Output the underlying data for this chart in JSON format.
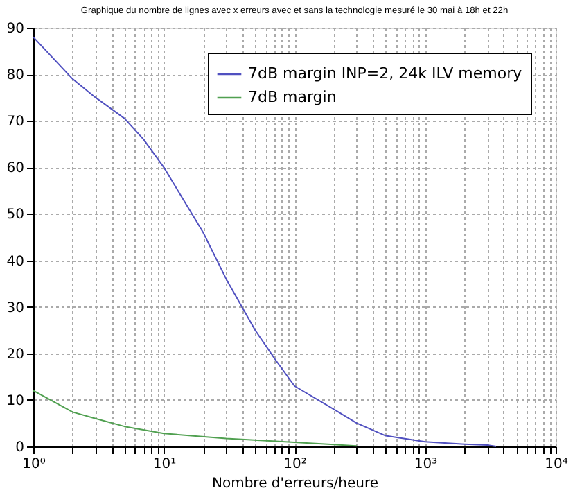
{
  "chart_data": {
    "type": "line",
    "title": "Graphique du nombre de lignes avec x erreurs avec et sans la technologie mesuré le 30 mai à 18h et 22h",
    "xlabel": "Nombre d'erreurs/heure",
    "log": "x",
    "xlim": [
      1,
      10000
    ],
    "xticks": [
      {
        "value": 1,
        "label": "10⁰"
      },
      {
        "value": 2,
        "label": null
      },
      {
        "value": 3,
        "label": null
      },
      {
        "value": 4,
        "label": null
      },
      {
        "value": 5,
        "label": null
      },
      {
        "value": 6,
        "label": null
      },
      {
        "value": 7,
        "label": null
      },
      {
        "value": 8,
        "label": null
      },
      {
        "value": 9,
        "label": null
      },
      {
        "value": 10,
        "label": "10¹"
      },
      {
        "value": 20,
        "label": null
      },
      {
        "value": 30,
        "label": null
      },
      {
        "value": 40,
        "label": null
      },
      {
        "value": 50,
        "label": null
      },
      {
        "value": 60,
        "label": null
      },
      {
        "value": 70,
        "label": null
      },
      {
        "value": 80,
        "label": null
      },
      {
        "value": 90,
        "label": null
      },
      {
        "value": 100,
        "label": "10²"
      },
      {
        "value": 200,
        "label": null
      },
      {
        "value": 300,
        "label": null
      },
      {
        "value": 400,
        "label": null
      },
      {
        "value": 500,
        "label": null
      },
      {
        "value": 600,
        "label": null
      },
      {
        "value": 700,
        "label": null
      },
      {
        "value": 800,
        "label": null
      },
      {
        "value": 900,
        "label": null
      },
      {
        "value": 1000,
        "label": "10³"
      },
      {
        "value": 2000,
        "label": null
      },
      {
        "value": 3000,
        "label": null
      },
      {
        "value": 4000,
        "label": null
      },
      {
        "value": 5000,
        "label": null
      },
      {
        "value": 6000,
        "label": null
      },
      {
        "value": 7000,
        "label": null
      },
      {
        "value": 8000,
        "label": null
      },
      {
        "value": 9000,
        "label": null
      },
      {
        "value": 10000,
        "label": "10⁴"
      }
    ],
    "ylim": [
      0,
      90
    ],
    "yticks": [
      0,
      10,
      20,
      30,
      40,
      50,
      60,
      70,
      80,
      90
    ],
    "grid": true,
    "legend": "top right",
    "line_style": "solid",
    "marker": "none",
    "series": [
      {
        "name": "7dB margin INP=2, 24k ILV memory",
        "color": "#5050c0",
        "x": [
          1,
          2,
          3,
          5,
          7,
          10,
          20,
          30,
          50,
          70,
          100,
          200,
          300,
          500,
          1000,
          2000,
          3000,
          3500
        ],
        "values": [
          88,
          79,
          75,
          70.5,
          66,
          60,
          46,
          36,
          25,
          19,
          13,
          8,
          5,
          2.3,
          1,
          0.5,
          0.3,
          0
        ]
      },
      {
        "name": "7dB margin",
        "color": "#50a050",
        "x": [
          1,
          2,
          3,
          5,
          10,
          30,
          100,
          200,
          300
        ],
        "values": [
          12,
          7.4,
          6,
          4.3,
          2.8,
          1.7,
          0.9,
          0.4,
          0.1
        ]
      }
    ]
  }
}
